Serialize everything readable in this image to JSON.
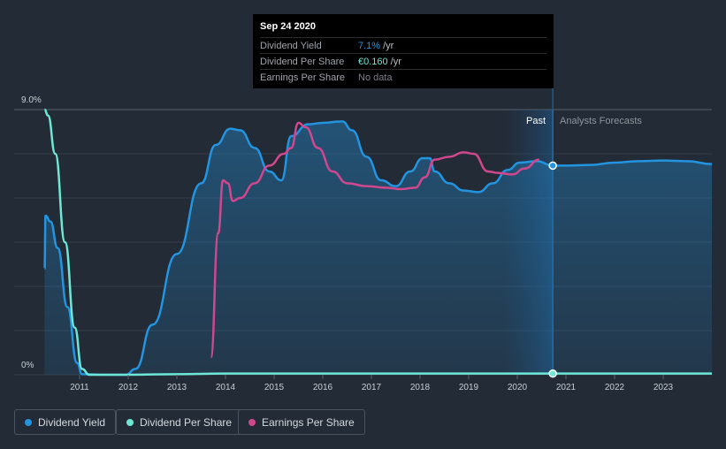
{
  "tooltip": {
    "date": "Sep 24 2020",
    "rows": [
      {
        "label": "Dividend Yield",
        "value": "7.1%",
        "unit": "/yr",
        "color": "#2394df"
      },
      {
        "label": "Dividend Per Share",
        "value": "€0.160",
        "unit": "/yr",
        "color": "#6ee7d6"
      },
      {
        "label": "Earnings Per Share",
        "value": "No data",
        "unit": "",
        "color": "#7b8189"
      }
    ]
  },
  "legend": [
    {
      "label": "Dividend Yield",
      "color": "#2394df"
    },
    {
      "label": "Dividend Per Share",
      "color": "#6ee7d6"
    },
    {
      "label": "Earnings Per Share",
      "color": "#d1478e"
    }
  ],
  "chart_data": {
    "type": "line",
    "title": "",
    "xlabel": "",
    "ylabel": "",
    "ylim": [
      0,
      9
    ],
    "xlim": [
      2010.0,
      2024.0
    ],
    "y_tick_labels": [
      "9.0%",
      "0%"
    ],
    "x_ticks": [
      "2011",
      "2012",
      "2013",
      "2014",
      "2015",
      "2016",
      "2017",
      "2018",
      "2019",
      "2020",
      "2021",
      "2022",
      "2023"
    ],
    "region_labels": {
      "past": "Past",
      "forecast": "Analysts Forecasts"
    },
    "marker_date": "Sep 24 2020",
    "series": [
      {
        "name": "Dividend Yield",
        "color": "#2394df",
        "area": true,
        "points": [
          [
            2010.28,
            3.6
          ],
          [
            2010.3,
            5.4
          ],
          [
            2010.4,
            5.2
          ],
          [
            2010.55,
            4.3
          ],
          [
            2010.75,
            2.3
          ],
          [
            2010.95,
            0.4
          ],
          [
            2011.05,
            0.02
          ],
          [
            2011.5,
            0.0
          ],
          [
            2011.95,
            0.0
          ],
          [
            2012.15,
            0.2
          ],
          [
            2012.5,
            1.7
          ],
          [
            2013.0,
            4.1
          ],
          [
            2013.5,
            6.5
          ],
          [
            2013.8,
            7.8
          ],
          [
            2014.1,
            8.35
          ],
          [
            2014.3,
            8.3
          ],
          [
            2014.6,
            7.7
          ],
          [
            2014.9,
            6.9
          ],
          [
            2015.15,
            6.6
          ],
          [
            2015.35,
            8.1
          ],
          [
            2015.7,
            8.5
          ],
          [
            2016.0,
            8.55
          ],
          [
            2016.4,
            8.6
          ],
          [
            2016.6,
            8.3
          ],
          [
            2016.9,
            7.4
          ],
          [
            2017.2,
            6.6
          ],
          [
            2017.5,
            6.4
          ],
          [
            2017.8,
            6.9
          ],
          [
            2018.05,
            7.35
          ],
          [
            2018.2,
            7.35
          ],
          [
            2018.3,
            6.9
          ],
          [
            2018.6,
            6.5
          ],
          [
            2018.9,
            6.25
          ],
          [
            2019.2,
            6.2
          ],
          [
            2019.5,
            6.5
          ],
          [
            2019.8,
            6.95
          ],
          [
            2020.05,
            7.2
          ],
          [
            2020.4,
            7.25
          ],
          [
            2020.73,
            7.1
          ],
          [
            2021.0,
            7.1
          ],
          [
            2021.5,
            7.12
          ],
          [
            2022.0,
            7.2
          ],
          [
            2022.5,
            7.25
          ],
          [
            2023.0,
            7.27
          ],
          [
            2023.5,
            7.25
          ],
          [
            2024.0,
            7.15
          ]
        ]
      },
      {
        "name": "Dividend Per Share",
        "color": "#6ee7d6",
        "area": false,
        "points": [
          [
            2010.28,
            9.0
          ],
          [
            2010.35,
            8.8
          ],
          [
            2010.5,
            7.5
          ],
          [
            2010.7,
            4.5
          ],
          [
            2010.9,
            1.6
          ],
          [
            2011.05,
            0.2
          ],
          [
            2011.2,
            0.0
          ],
          [
            2012.0,
            0.0
          ],
          [
            2013.0,
            0.02
          ],
          [
            2014.0,
            0.04
          ],
          [
            2020.73,
            0.04
          ],
          [
            2024.0,
            0.04
          ]
        ]
      },
      {
        "name": "Earnings Per Share",
        "color": "#d1478e",
        "area": false,
        "points": [
          [
            2013.7,
            0.6
          ],
          [
            2013.85,
            4.8
          ],
          [
            2013.95,
            6.6
          ],
          [
            2014.05,
            6.5
          ],
          [
            2014.15,
            5.9
          ],
          [
            2014.3,
            6.0
          ],
          [
            2014.6,
            6.5
          ],
          [
            2014.9,
            7.1
          ],
          [
            2015.2,
            7.5
          ],
          [
            2015.35,
            7.7
          ],
          [
            2015.5,
            8.55
          ],
          [
            2015.65,
            8.4
          ],
          [
            2015.9,
            7.7
          ],
          [
            2016.2,
            6.9
          ],
          [
            2016.5,
            6.5
          ],
          [
            2016.9,
            6.4
          ],
          [
            2017.3,
            6.35
          ],
          [
            2017.6,
            6.3
          ],
          [
            2017.9,
            6.35
          ],
          [
            2018.1,
            6.7
          ],
          [
            2018.3,
            7.3
          ],
          [
            2018.6,
            7.4
          ],
          [
            2018.9,
            7.55
          ],
          [
            2019.1,
            7.5
          ],
          [
            2019.4,
            6.9
          ],
          [
            2019.6,
            6.85
          ],
          [
            2019.9,
            6.8
          ],
          [
            2020.15,
            7.0
          ],
          [
            2020.45,
            7.3
          ]
        ]
      }
    ]
  }
}
